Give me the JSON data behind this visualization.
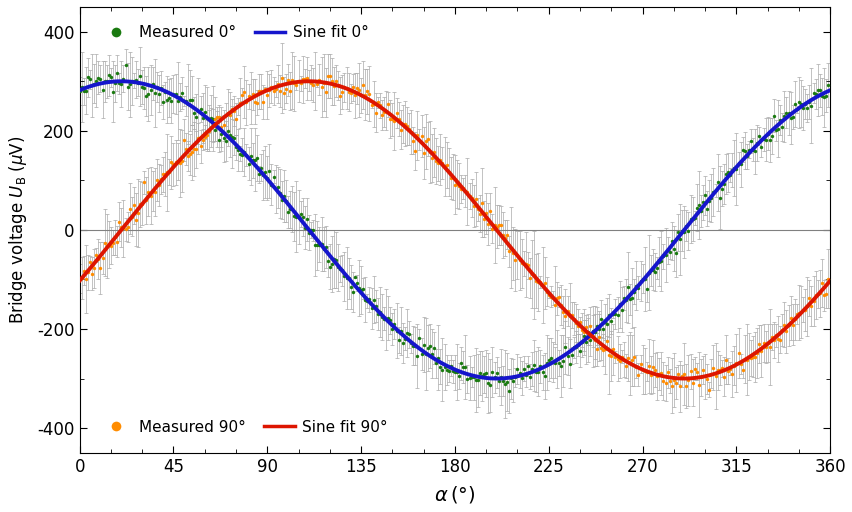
{
  "title": "",
  "xlabel": "$\\alpha\\,(^\\circ)$",
  "ylabel": "Bridge voltage $U_\\mathrm{B}$ ($\\mu$V)",
  "xlim": [
    0,
    360
  ],
  "ylim": [
    -450,
    450
  ],
  "yticks": [
    -400,
    -200,
    0,
    200,
    400
  ],
  "xticks": [
    0,
    45,
    90,
    135,
    180,
    225,
    270,
    315,
    360
  ],
  "amplitude_0": 300,
  "phase_0_deg": 20,
  "amplitude_90": 300,
  "phase_90_deg": 110,
  "error_bar_color": "#aaaaaa",
  "error_bar_size": 40,
  "dot_color_0": "#1a7a10",
  "dot_color_90": "#ff8c00",
  "fit_color_0": "#1515cc",
  "fit_color_90": "#dd1500",
  "n_points": 360,
  "background_color": "#ffffff",
  "fit_linewidth": 2.8,
  "dot_size": 6
}
